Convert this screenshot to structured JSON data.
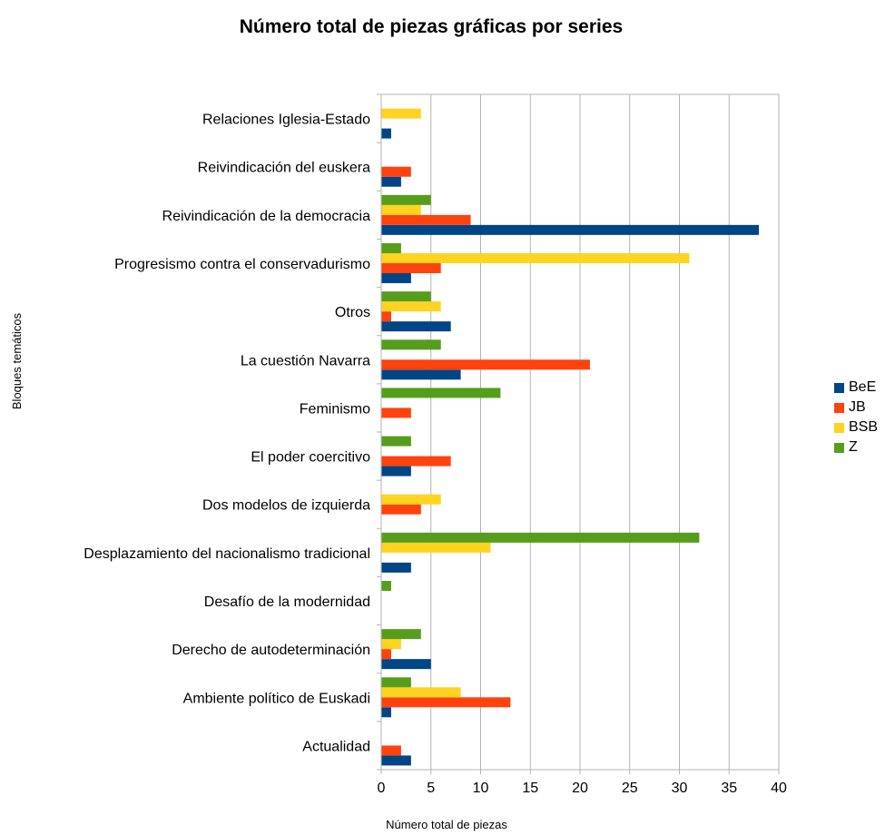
{
  "chart_data": {
    "type": "bar",
    "orientation": "horizontal",
    "title": "Número total de piezas gráficas por series",
    "xlabel": "Número total de piezas",
    "ylabel": "Bloques temáticos",
    "xlim": [
      0,
      40
    ],
    "xticks": [
      0,
      5,
      10,
      15,
      20,
      25,
      30,
      35,
      40
    ],
    "grid": true,
    "legend_position": "right",
    "categories": [
      "Actualidad",
      "Ambiente político de Euskadi",
      "Derecho de autodeterminación",
      "Desafío de la modernidad",
      "Desplazamiento del nacionalismo tradicional",
      "Dos modelos de izquierda",
      "El poder coercitivo",
      "Feminismo",
      "La cuestión Navarra",
      "Otros",
      "Progresismo contra el conservadurismo",
      "Reivindicación de la democracia",
      "Reivindicación del euskera",
      "Relaciones Iglesia-Estado"
    ],
    "series": [
      {
        "name": "BeE",
        "color": "#004586",
        "values": [
          3,
          1,
          5,
          0,
          3,
          0,
          3,
          0,
          8,
          7,
          3,
          38,
          2,
          1
        ]
      },
      {
        "name": "JB",
        "color": "#ff420e",
        "values": [
          2,
          13,
          1,
          0,
          0,
          4,
          7,
          3,
          21,
          1,
          6,
          9,
          3,
          0
        ]
      },
      {
        "name": "BSB",
        "color": "#ffd320",
        "values": [
          0,
          8,
          2,
          0,
          11,
          6,
          0,
          0,
          0,
          6,
          31,
          4,
          0,
          4
        ]
      },
      {
        "name": "Z",
        "color": "#579d1c",
        "values": [
          0,
          3,
          4,
          1,
          32,
          0,
          3,
          12,
          6,
          5,
          2,
          5,
          0,
          0
        ]
      }
    ]
  }
}
